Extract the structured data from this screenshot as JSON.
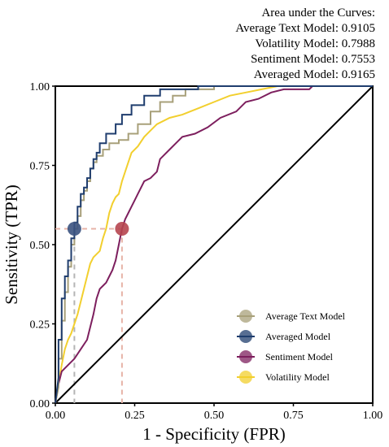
{
  "auc_box": {
    "lines": [
      "Area under the Curves:",
      "Average Text Model: 0.9105",
      "Volatility Model: 0.7988",
      "Sentiment Model: 0.7553",
      "Averaged Model: 0.9165"
    ]
  },
  "chart_data": {
    "type": "line",
    "xlabel": "1 - Specificity (FPR)",
    "ylabel": "Sensitivity (TPR)",
    "xlim": [
      0,
      1
    ],
    "ylim": [
      0,
      1
    ],
    "xticks": [
      "0.00",
      "0.25",
      "0.50",
      "0.75",
      "1.00"
    ],
    "yticks": [
      "0.00",
      "0.25",
      "0.50",
      "0.75",
      "1.00"
    ],
    "grid": false,
    "legend_position": "lower-right",
    "colors": {
      "average_text": "#a8a07a",
      "averaged": "#1f3d6e",
      "sentiment": "#7d1f5e",
      "volatility": "#f2cf2e",
      "diagonal": "#000000",
      "guide_left": "#b4b4b4",
      "guide_right": "#e7b3a7",
      "marker_left": "#3a527f",
      "marker_right": "#b6454f"
    },
    "series": [
      {
        "name": "Average Text Model",
        "key": "average_text",
        "points": [
          [
            0,
            0
          ],
          [
            0.01,
            0.05
          ],
          [
            0.01,
            0.14
          ],
          [
            0.02,
            0.14
          ],
          [
            0.02,
            0.26
          ],
          [
            0.03,
            0.26
          ],
          [
            0.03,
            0.35
          ],
          [
            0.04,
            0.35
          ],
          [
            0.04,
            0.43
          ],
          [
            0.05,
            0.43
          ],
          [
            0.05,
            0.5
          ],
          [
            0.06,
            0.5
          ],
          [
            0.06,
            0.55
          ],
          [
            0.07,
            0.55
          ],
          [
            0.07,
            0.59
          ],
          [
            0.08,
            0.59
          ],
          [
            0.08,
            0.64
          ],
          [
            0.09,
            0.64
          ],
          [
            0.09,
            0.67
          ],
          [
            0.1,
            0.67
          ],
          [
            0.1,
            0.7
          ],
          [
            0.11,
            0.7
          ],
          [
            0.11,
            0.74
          ],
          [
            0.12,
            0.74
          ],
          [
            0.12,
            0.76
          ],
          [
            0.13,
            0.76
          ],
          [
            0.13,
            0.78
          ],
          [
            0.15,
            0.78
          ],
          [
            0.15,
            0.8
          ],
          [
            0.17,
            0.8
          ],
          [
            0.17,
            0.82
          ],
          [
            0.2,
            0.82
          ],
          [
            0.2,
            0.83
          ],
          [
            0.23,
            0.83
          ],
          [
            0.23,
            0.85
          ],
          [
            0.26,
            0.85
          ],
          [
            0.26,
            0.88
          ],
          [
            0.3,
            0.88
          ],
          [
            0.3,
            0.92
          ],
          [
            0.33,
            0.92
          ],
          [
            0.33,
            0.95
          ],
          [
            0.37,
            0.95
          ],
          [
            0.37,
            0.97
          ],
          [
            0.41,
            0.97
          ],
          [
            0.41,
            0.99
          ],
          [
            0.5,
            0.99
          ],
          [
            0.5,
            1.0
          ],
          [
            1.0,
            1.0
          ]
        ]
      },
      {
        "name": "Averaged Model",
        "key": "averaged",
        "points": [
          [
            0,
            0
          ],
          [
            0.01,
            0.08
          ],
          [
            0.01,
            0.2
          ],
          [
            0.02,
            0.2
          ],
          [
            0.02,
            0.33
          ],
          [
            0.03,
            0.33
          ],
          [
            0.03,
            0.4
          ],
          [
            0.04,
            0.4
          ],
          [
            0.04,
            0.45
          ],
          [
            0.05,
            0.45
          ],
          [
            0.05,
            0.52
          ],
          [
            0.06,
            0.52
          ],
          [
            0.06,
            0.57
          ],
          [
            0.07,
            0.57
          ],
          [
            0.07,
            0.62
          ],
          [
            0.08,
            0.62
          ],
          [
            0.08,
            0.66
          ],
          [
            0.09,
            0.66
          ],
          [
            0.09,
            0.68
          ],
          [
            0.1,
            0.68
          ],
          [
            0.1,
            0.71
          ],
          [
            0.11,
            0.71
          ],
          [
            0.11,
            0.74
          ],
          [
            0.12,
            0.74
          ],
          [
            0.12,
            0.77
          ],
          [
            0.13,
            0.77
          ],
          [
            0.13,
            0.79
          ],
          [
            0.14,
            0.79
          ],
          [
            0.14,
            0.82
          ],
          [
            0.16,
            0.82
          ],
          [
            0.16,
            0.85
          ],
          [
            0.19,
            0.85
          ],
          [
            0.19,
            0.88
          ],
          [
            0.21,
            0.88
          ],
          [
            0.21,
            0.91
          ],
          [
            0.24,
            0.91
          ],
          [
            0.24,
            0.94
          ],
          [
            0.28,
            0.94
          ],
          [
            0.28,
            0.97
          ],
          [
            0.33,
            0.97
          ],
          [
            0.33,
            0.99
          ],
          [
            0.45,
            0.99
          ],
          [
            0.45,
            1.0
          ],
          [
            1.0,
            1.0
          ]
        ]
      },
      {
        "name": "Sentiment Model",
        "key": "sentiment",
        "points": [
          [
            0,
            0
          ],
          [
            0.01,
            0.06
          ],
          [
            0.02,
            0.1
          ],
          [
            0.04,
            0.12
          ],
          [
            0.06,
            0.14
          ],
          [
            0.08,
            0.17
          ],
          [
            0.1,
            0.2
          ],
          [
            0.11,
            0.24
          ],
          [
            0.12,
            0.28
          ],
          [
            0.13,
            0.33
          ],
          [
            0.14,
            0.36
          ],
          [
            0.16,
            0.38
          ],
          [
            0.17,
            0.4
          ],
          [
            0.18,
            0.42
          ],
          [
            0.19,
            0.45
          ],
          [
            0.2,
            0.5
          ],
          [
            0.21,
            0.55
          ],
          [
            0.22,
            0.58
          ],
          [
            0.23,
            0.6
          ],
          [
            0.24,
            0.62
          ],
          [
            0.25,
            0.64
          ],
          [
            0.26,
            0.66
          ],
          [
            0.27,
            0.68
          ],
          [
            0.28,
            0.7
          ],
          [
            0.3,
            0.71
          ],
          [
            0.32,
            0.73
          ],
          [
            0.33,
            0.77
          ],
          [
            0.34,
            0.78
          ],
          [
            0.36,
            0.8
          ],
          [
            0.38,
            0.82
          ],
          [
            0.4,
            0.84
          ],
          [
            0.44,
            0.85
          ],
          [
            0.48,
            0.87
          ],
          [
            0.52,
            0.9
          ],
          [
            0.57,
            0.92
          ],
          [
            0.6,
            0.95
          ],
          [
            0.64,
            0.96
          ],
          [
            0.68,
            0.98
          ],
          [
            0.72,
            0.99
          ],
          [
            0.8,
            0.99
          ],
          [
            0.81,
            1.0
          ],
          [
            1.0,
            1.0
          ]
        ]
      },
      {
        "name": "Volatility Model",
        "key": "volatility",
        "points": [
          [
            0,
            0
          ],
          [
            0.01,
            0.06
          ],
          [
            0.02,
            0.12
          ],
          [
            0.03,
            0.17
          ],
          [
            0.04,
            0.2
          ],
          [
            0.05,
            0.22
          ],
          [
            0.06,
            0.25
          ],
          [
            0.07,
            0.28
          ],
          [
            0.08,
            0.32
          ],
          [
            0.09,
            0.36
          ],
          [
            0.1,
            0.4
          ],
          [
            0.11,
            0.44
          ],
          [
            0.12,
            0.46
          ],
          [
            0.14,
            0.48
          ],
          [
            0.15,
            0.52
          ],
          [
            0.16,
            0.55
          ],
          [
            0.17,
            0.6
          ],
          [
            0.18,
            0.63
          ],
          [
            0.19,
            0.65
          ],
          [
            0.2,
            0.66
          ],
          [
            0.21,
            0.7
          ],
          [
            0.22,
            0.73
          ],
          [
            0.23,
            0.76
          ],
          [
            0.24,
            0.79
          ],
          [
            0.26,
            0.81
          ],
          [
            0.28,
            0.84
          ],
          [
            0.3,
            0.86
          ],
          [
            0.32,
            0.88
          ],
          [
            0.36,
            0.9
          ],
          [
            0.4,
            0.91
          ],
          [
            0.45,
            0.93
          ],
          [
            0.5,
            0.95
          ],
          [
            0.55,
            0.97
          ],
          [
            0.6,
            0.98
          ],
          [
            0.65,
            0.99
          ],
          [
            0.7,
            1.0
          ],
          [
            1.0,
            1.0
          ]
        ]
      }
    ],
    "diagonal": [
      [
        0,
        0
      ],
      [
        1,
        1
      ]
    ],
    "operating_points": [
      {
        "key": "marker_left",
        "guide": "guide_left",
        "x": 0.06,
        "y": 0.55
      },
      {
        "key": "marker_right",
        "guide": "guide_right",
        "x": 0.21,
        "y": 0.55
      }
    ],
    "legend_order": [
      "average_text",
      "averaged",
      "sentiment",
      "volatility"
    ]
  }
}
